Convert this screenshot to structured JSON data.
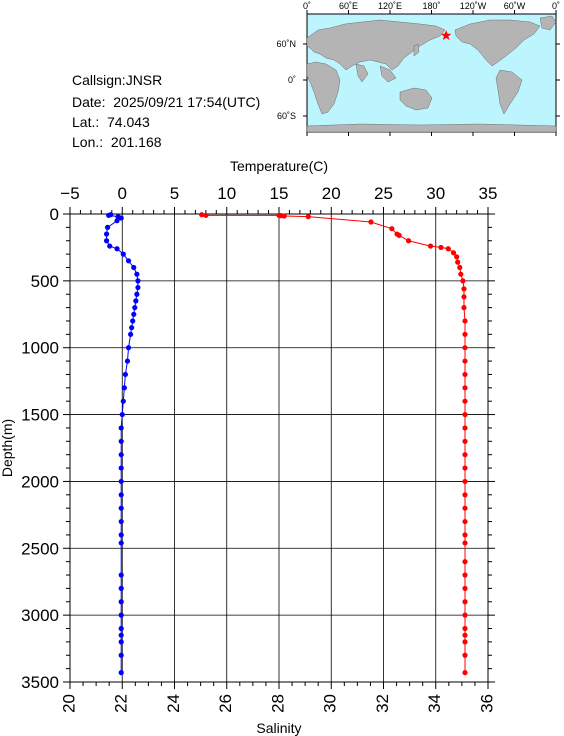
{
  "info": {
    "callsign": "Callsign:JNSR",
    "date": "Date:  2025/09/21 17:54(UTC)",
    "lat": "Lat.:  74.043",
    "lon": "Lon.:  201.168"
  },
  "map": {
    "lon_ticks": [
      "0˚",
      "60˚E",
      "120˚E",
      "180˚",
      "120˚W",
      "60˚W",
      "0˚"
    ],
    "lat_ticks": [
      "60˚N",
      "0˚",
      "60˚S"
    ],
    "ocean_color": "#bdf5ff",
    "land_color": "#b4b4b4",
    "marker_color": "#ff0000",
    "marker_lon": 201.168,
    "marker_lat": 74.043
  },
  "chart_data": {
    "type": "scatter",
    "ylabel": "Depth(m)",
    "ylim": [
      3500,
      0
    ],
    "y_ticks": [
      0,
      500,
      1000,
      1500,
      2000,
      2500,
      3000,
      3500
    ],
    "top_axis": {
      "label": "Temperature(C)",
      "range": [
        -5,
        35
      ],
      "ticks": [
        -5,
        0,
        5,
        10,
        15,
        20,
        25,
        30,
        35
      ]
    },
    "bottom_axis": {
      "label": "Salinity",
      "range": [
        20,
        36
      ],
      "ticks": [
        20,
        22,
        24,
        26,
        28,
        30,
        32,
        34,
        36
      ]
    },
    "grid": true,
    "series": [
      {
        "axis": "top",
        "color": "#ff0000",
        "points": [
          [
            7.6,
            5
          ],
          [
            8.0,
            10
          ],
          [
            15.0,
            10
          ],
          [
            15.2,
            12
          ],
          [
            15.5,
            15
          ],
          [
            17.8,
            20
          ],
          [
            23.8,
            60
          ],
          [
            25.8,
            110
          ],
          [
            26.3,
            150
          ],
          [
            26.5,
            160
          ],
          [
            27.4,
            200
          ],
          [
            29.5,
            240
          ],
          [
            30.5,
            250
          ],
          [
            31.2,
            260
          ],
          [
            31.7,
            290
          ],
          [
            32.0,
            320
          ],
          [
            32.1,
            360
          ],
          [
            32.3,
            400
          ],
          [
            32.4,
            450
          ],
          [
            32.6,
            500
          ],
          [
            32.7,
            560
          ],
          [
            32.7,
            620
          ],
          [
            32.7,
            700
          ],
          [
            32.8,
            800
          ],
          [
            32.8,
            900
          ],
          [
            32.8,
            1000
          ],
          [
            32.8,
            1100
          ],
          [
            32.8,
            1200
          ],
          [
            32.8,
            1300
          ],
          [
            32.8,
            1400
          ],
          [
            32.8,
            1500
          ],
          [
            32.8,
            1600
          ],
          [
            32.8,
            1700
          ],
          [
            32.8,
            1800
          ],
          [
            32.8,
            1900
          ],
          [
            32.8,
            2000
          ],
          [
            32.8,
            2100
          ],
          [
            32.8,
            2200
          ],
          [
            32.8,
            2300
          ],
          [
            32.8,
            2400
          ],
          [
            32.8,
            2460
          ],
          [
            32.8,
            2600
          ],
          [
            32.8,
            2700
          ],
          [
            32.8,
            2800
          ],
          [
            32.8,
            2900
          ],
          [
            32.8,
            3000
          ],
          [
            32.8,
            3100
          ],
          [
            32.8,
            3150
          ],
          [
            32.8,
            3200
          ],
          [
            32.8,
            3300
          ],
          [
            32.8,
            3430
          ]
        ]
      },
      {
        "axis": "top",
        "color": "#0000ff",
        "points": [
          [
            -1.1,
            5
          ],
          [
            -1.3,
            10
          ],
          [
            -0.4,
            20
          ],
          [
            -0.1,
            30
          ],
          [
            -0.5,
            50
          ],
          [
            -1.4,
            100
          ],
          [
            -1.5,
            150
          ],
          [
            -1.5,
            200
          ],
          [
            -1.2,
            240
          ],
          [
            -0.5,
            260
          ],
          [
            0.1,
            300
          ],
          [
            0.6,
            350
          ],
          [
            1.1,
            400
          ],
          [
            1.4,
            450
          ],
          [
            1.5,
            500
          ],
          [
            1.5,
            550
          ],
          [
            1.4,
            600
          ],
          [
            1.3,
            650
          ],
          [
            1.2,
            700
          ],
          [
            1.1,
            750
          ],
          [
            1.0,
            800
          ],
          [
            0.9,
            850
          ],
          [
            0.8,
            900
          ],
          [
            0.6,
            1000
          ],
          [
            0.5,
            1100
          ],
          [
            0.3,
            1200
          ],
          [
            0.2,
            1300
          ],
          [
            0.1,
            1400
          ],
          [
            0.0,
            1500
          ],
          [
            -0.1,
            1600
          ],
          [
            -0.1,
            1700
          ],
          [
            -0.1,
            1800
          ],
          [
            -0.1,
            1900
          ],
          [
            -0.1,
            2000
          ],
          [
            -0.1,
            2100
          ],
          [
            -0.1,
            2200
          ],
          [
            -0.1,
            2300
          ],
          [
            -0.1,
            2400
          ],
          [
            -0.1,
            2460
          ],
          [
            -0.1,
            2700
          ],
          [
            -0.1,
            2800
          ],
          [
            -0.1,
            2900
          ],
          [
            -0.1,
            3000
          ],
          [
            -0.1,
            3100
          ],
          [
            -0.1,
            3150
          ],
          [
            -0.1,
            3200
          ],
          [
            -0.1,
            3300
          ],
          [
            -0.1,
            3430
          ]
        ]
      }
    ]
  }
}
